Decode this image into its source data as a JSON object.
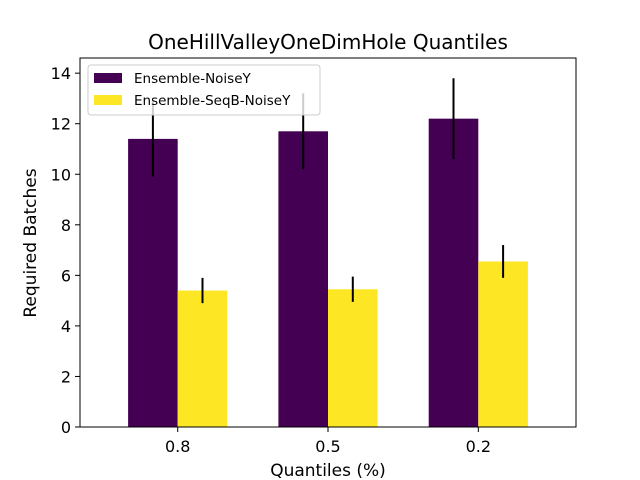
{
  "chart_data": {
    "type": "bar",
    "title": "OneHillValleyOneDimHole Quantiles",
    "xlabel": "Quantiles (%)",
    "ylabel": "Required Batches",
    "categories": [
      "0.8",
      "0.5",
      "0.2"
    ],
    "ylim": [
      0,
      14.6
    ],
    "yticks": [
      0,
      2,
      4,
      6,
      8,
      10,
      12,
      14
    ],
    "grid": false,
    "legend_position": "top-left",
    "series": [
      {
        "name": "Ensemble-NoiseY",
        "color": "#440154",
        "values": [
          11.4,
          11.7,
          12.2
        ],
        "error": [
          1.5,
          1.5,
          1.6
        ]
      },
      {
        "name": "Ensemble-SeqB-NoiseY",
        "color": "#fde725",
        "values": [
          5.4,
          5.45,
          6.55
        ],
        "error": [
          0.5,
          0.5,
          0.65
        ]
      }
    ]
  }
}
